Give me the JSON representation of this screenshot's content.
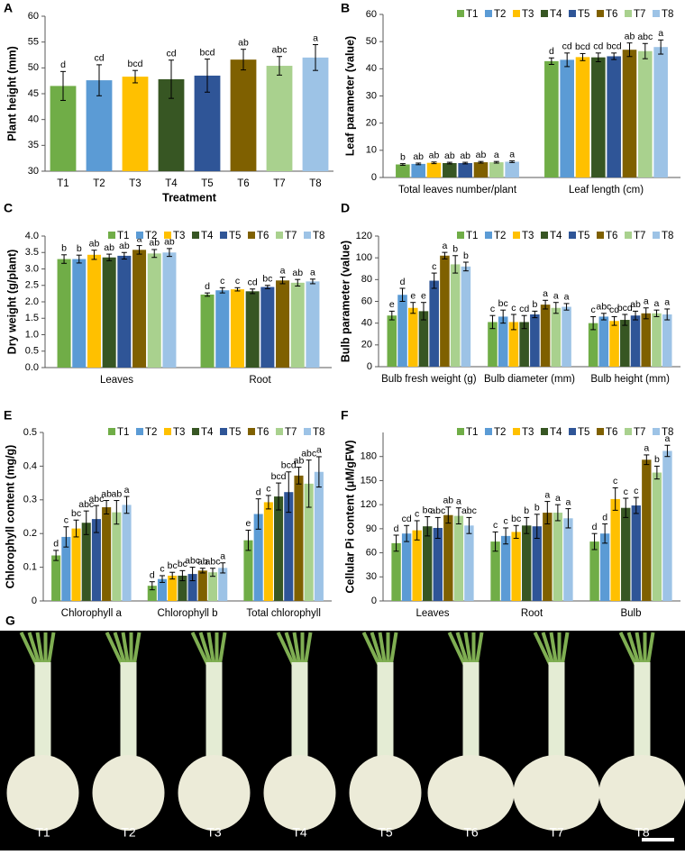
{
  "chart_data": [
    {
      "type": "bar",
      "panel": "A",
      "ylabel": "Plant height (mm)",
      "xlabel": "Treatment",
      "categories": [
        "T1",
        "T2",
        "T3",
        "T4",
        "T5",
        "T6",
        "T7",
        "T8"
      ],
      "values": [
        46.5,
        47.6,
        48.3,
        47.8,
        48.5,
        51.6,
        50.4,
        52.0
      ],
      "errors": [
        2.8,
        3.0,
        1.2,
        3.7,
        3.2,
        2.0,
        1.8,
        2.5
      ],
      "letters": [
        "d",
        "cd",
        "bcd",
        "cd",
        "bcd",
        "ab",
        "abc",
        "a"
      ],
      "colors": [
        "#70ad47",
        "#5b9bd5",
        "#ffc000",
        "#375623",
        "#2f5597",
        "#7f6000",
        "#a9d18e",
        "#9dc3e6"
      ],
      "ylim": [
        30,
        60
      ],
      "yticks": [
        30,
        35,
        40,
        45,
        50,
        55,
        60
      ]
    },
    {
      "type": "bar",
      "panel": "B",
      "ylabel": "Leaf parameter (value)",
      "legend": "top",
      "categories": [
        "Total leaves number/plant",
        "Leaf length (cm)"
      ],
      "series": [
        {
          "name": "T1",
          "color": "#70ad47",
          "values": [
            4.8,
            42.8
          ],
          "errors": [
            0.3,
            1.2
          ],
          "letters": [
            "b",
            "d"
          ]
        },
        {
          "name": "T2",
          "color": "#5b9bd5",
          "values": [
            5.0,
            43.3
          ],
          "errors": [
            0.3,
            2.5
          ],
          "letters": [
            "ab",
            "cd"
          ]
        },
        {
          "name": "T3",
          "color": "#ffc000",
          "values": [
            5.4,
            44.3
          ],
          "errors": [
            0.3,
            1.3
          ],
          "letters": [
            "ab",
            "bcd"
          ]
        },
        {
          "name": "T4",
          "color": "#375623",
          "values": [
            5.3,
            44.2
          ],
          "errors": [
            0.3,
            1.6
          ],
          "letters": [
            "ab",
            "cd"
          ]
        },
        {
          "name": "T5",
          "color": "#2f5597",
          "values": [
            5.3,
            44.6
          ],
          "errors": [
            0.3,
            1.2
          ],
          "letters": [
            "ab",
            "bcd"
          ]
        },
        {
          "name": "T6",
          "color": "#7f6000",
          "values": [
            5.6,
            47.0
          ],
          "errors": [
            0.3,
            2.5
          ],
          "letters": [
            "ab",
            "ab"
          ]
        },
        {
          "name": "T7",
          "color": "#a9d18e",
          "values": [
            5.6,
            46.5
          ],
          "errors": [
            0.3,
            2.8
          ],
          "letters": [
            "a",
            "abc"
          ]
        },
        {
          "name": "T8",
          "color": "#9dc3e6",
          "values": [
            5.8,
            48.0
          ],
          "errors": [
            0.3,
            2.6
          ],
          "letters": [
            "a",
            "a"
          ]
        }
      ],
      "ylim": [
        0,
        60
      ],
      "yticks": [
        0,
        10,
        20,
        30,
        40,
        50,
        60
      ]
    },
    {
      "type": "bar",
      "panel": "C",
      "ylabel": "Dry weight (g/plant)",
      "legend": "top",
      "categories": [
        "Leaves",
        "Root"
      ],
      "series": [
        {
          "name": "T1",
          "color": "#70ad47",
          "values": [
            3.3,
            2.22
          ],
          "errors": [
            0.13,
            0.05
          ],
          "letters": [
            "b",
            "d"
          ]
        },
        {
          "name": "T2",
          "color": "#5b9bd5",
          "values": [
            3.3,
            2.35
          ],
          "errors": [
            0.12,
            0.08
          ],
          "letters": [
            "b",
            "c"
          ]
        },
        {
          "name": "T3",
          "color": "#ffc000",
          "values": [
            3.43,
            2.38
          ],
          "errors": [
            0.14,
            0.05
          ],
          "letters": [
            "ab",
            "c"
          ]
        },
        {
          "name": "T4",
          "color": "#375623",
          "values": [
            3.35,
            2.32
          ],
          "errors": [
            0.1,
            0.07
          ],
          "letters": [
            "ab",
            "cd"
          ]
        },
        {
          "name": "T5",
          "color": "#2f5597",
          "values": [
            3.4,
            2.45
          ],
          "errors": [
            0.1,
            0.05
          ],
          "letters": [
            "ab",
            "bc"
          ]
        },
        {
          "name": "T6",
          "color": "#7f6000",
          "values": [
            3.58,
            2.65
          ],
          "errors": [
            0.13,
            0.1
          ],
          "letters": [
            "a",
            "a"
          ]
        },
        {
          "name": "T7",
          "color": "#a9d18e",
          "values": [
            3.47,
            2.58
          ],
          "errors": [
            0.12,
            0.1
          ],
          "letters": [
            "ab",
            "ab"
          ]
        },
        {
          "name": "T8",
          "color": "#9dc3e6",
          "values": [
            3.5,
            2.62
          ],
          "errors": [
            0.12,
            0.07
          ],
          "letters": [
            "ab",
            "a"
          ]
        }
      ],
      "ylim": [
        0,
        4
      ],
      "yticks": [
        {
          "value": 0,
          "label": "0.0"
        },
        0.5,
        {
          "value": 1,
          "label": "1.0"
        },
        1.5,
        {
          "value": 2,
          "label": "2.0"
        },
        2.5,
        {
          "value": 3,
          "label": "3.0"
        },
        3.5,
        {
          "value": 4,
          "label": "4.0"
        }
      ]
    },
    {
      "type": "bar",
      "panel": "D",
      "ylabel": "Bulb parameter (value)",
      "legend": "top",
      "categories": [
        "Bulb fresh weight (g)",
        "Bulb diameter (mm)",
        "Bulb height (mm)"
      ],
      "series": [
        {
          "name": "T1",
          "color": "#70ad47",
          "values": [
            47,
            41,
            40
          ],
          "errors": [
            4,
            6,
            6
          ],
          "letters": [
            "e",
            "c",
            "c"
          ]
        },
        {
          "name": "T2",
          "color": "#5b9bd5",
          "values": [
            66,
            46,
            46
          ],
          "errors": [
            6,
            6,
            3
          ],
          "letters": [
            "d",
            "bc",
            "abc"
          ]
        },
        {
          "name": "T3",
          "color": "#ffc000",
          "values": [
            54,
            41,
            42
          ],
          "errors": [
            5,
            7,
            4
          ],
          "letters": [
            "e",
            "c",
            "cd"
          ]
        },
        {
          "name": "T4",
          "color": "#375623",
          "values": [
            51,
            41,
            43
          ],
          "errors": [
            8,
            6,
            5
          ],
          "letters": [
            "e",
            "cd",
            "bcd"
          ]
        },
        {
          "name": "T5",
          "color": "#2f5597",
          "values": [
            79,
            48,
            47
          ],
          "errors": [
            7,
            3,
            4
          ],
          "letters": [
            "c",
            "b",
            "ab"
          ]
        },
        {
          "name": "T6",
          "color": "#7f6000",
          "values": [
            102,
            57,
            49
          ],
          "errors": [
            3,
            4,
            5
          ],
          "letters": [
            "a",
            "a",
            "a"
          ]
        },
        {
          "name": "T7",
          "color": "#a9d18e",
          "values": [
            94,
            54,
            49
          ],
          "errors": [
            8,
            5,
            3
          ],
          "letters": [
            "b",
            "a",
            "a"
          ]
        },
        {
          "name": "T8",
          "color": "#9dc3e6",
          "values": [
            92,
            55,
            48
          ],
          "errors": [
            4,
            3,
            5
          ],
          "letters": [
            "b",
            "a",
            "a"
          ]
        }
      ],
      "ylim": [
        0,
        120
      ],
      "yticks": [
        0,
        20,
        40,
        60,
        80,
        100,
        120
      ]
    },
    {
      "type": "bar",
      "panel": "E",
      "ylabel": "Chlorophyll content (mg/g)",
      "legend": "top",
      "categories": [
        "Chlorophyll a",
        "Chlorophyll b",
        "Total chlorophyll"
      ],
      "series": [
        {
          "name": "T1",
          "color": "#70ad47",
          "values": [
            0.135,
            0.045,
            0.18
          ],
          "errors": [
            0.015,
            0.012,
            0.03
          ],
          "letters": [
            "d",
            "d",
            "e"
          ]
        },
        {
          "name": "T2",
          "color": "#5b9bd5",
          "values": [
            0.19,
            0.065,
            0.258
          ],
          "errors": [
            0.03,
            0.01,
            0.045
          ],
          "letters": [
            "c",
            "c",
            "d"
          ]
        },
        {
          "name": "T3",
          "color": "#ffc000",
          "values": [
            0.215,
            0.075,
            0.293
          ],
          "errors": [
            0.025,
            0.01,
            0.02
          ],
          "letters": [
            "bc",
            "bc",
            "c"
          ]
        },
        {
          "name": "T4",
          "color": "#375623",
          "values": [
            0.232,
            0.075,
            0.31
          ],
          "errors": [
            0.035,
            0.015,
            0.04
          ],
          "letters": [
            "abc",
            "bc",
            "bcd"
          ]
        },
        {
          "name": "T5",
          "color": "#2f5597",
          "values": [
            0.243,
            0.08,
            0.323
          ],
          "errors": [
            0.04,
            0.02,
            0.06
          ],
          "letters": [
            "abc",
            "abc",
            "bcd"
          ]
        },
        {
          "name": "T6",
          "color": "#7f6000",
          "values": [
            0.278,
            0.09,
            0.372
          ],
          "errors": [
            0.02,
            0.007,
            0.025
          ],
          "letters": [
            "ab",
            "ab",
            "ab"
          ]
        },
        {
          "name": "T7",
          "color": "#a9d18e",
          "values": [
            0.263,
            0.085,
            0.348
          ],
          "errors": [
            0.035,
            0.012,
            0.07
          ],
          "letters": [
            "ab",
            "abc",
            "abc"
          ]
        },
        {
          "name": "T8",
          "color": "#9dc3e6",
          "values": [
            0.285,
            0.098,
            0.383
          ],
          "errors": [
            0.025,
            0.015,
            0.045
          ],
          "letters": [
            "a",
            "a",
            "a"
          ]
        }
      ],
      "ylim": [
        0,
        0.5
      ],
      "yticks": [
        0,
        0.1,
        0.2,
        0.3,
        0.4,
        0.5
      ]
    },
    {
      "type": "bar",
      "panel": "F",
      "ylabel": "Cellular Pi content (μM/gFW)",
      "legend": "top",
      "categories": [
        "Leaves",
        "Root",
        "Bulb"
      ],
      "series": [
        {
          "name": "T1",
          "color": "#70ad47",
          "values": [
            72,
            74,
            74
          ],
          "errors": [
            10,
            12,
            10
          ],
          "letters": [
            "d",
            "c",
            "d"
          ]
        },
        {
          "name": "T2",
          "color": "#5b9bd5",
          "values": [
            84,
            81,
            84
          ],
          "errors": [
            10,
            10,
            12
          ],
          "letters": [
            "cd",
            "c",
            "d"
          ]
        },
        {
          "name": "T3",
          "color": "#ffc000",
          "values": [
            88,
            86,
            127
          ],
          "errors": [
            12,
            8,
            14
          ],
          "letters": [
            "c",
            "bc",
            "c"
          ]
        },
        {
          "name": "T4",
          "color": "#375623",
          "values": [
            93,
            94,
            116
          ],
          "errors": [
            12,
            10,
            12
          ],
          "letters": [
            "bc",
            "b",
            "c"
          ]
        },
        {
          "name": "T5",
          "color": "#2f5597",
          "values": [
            91,
            93,
            119
          ],
          "errors": [
            13,
            15,
            10
          ],
          "letters": [
            "abc",
            "b",
            "c"
          ]
        },
        {
          "name": "T6",
          "color": "#7f6000",
          "values": [
            107,
            110,
            176
          ],
          "errors": [
            10,
            14,
            6
          ],
          "letters": [
            "ab",
            "a",
            "a"
          ]
        },
        {
          "name": "T7",
          "color": "#a9d18e",
          "values": [
            106,
            110,
            160
          ],
          "errors": [
            10,
            10,
            8
          ],
          "letters": [
            "a",
            "a",
            "b"
          ]
        },
        {
          "name": "T8",
          "color": "#9dc3e6",
          "values": [
            94,
            103,
            187
          ],
          "errors": [
            10,
            12,
            7
          ],
          "letters": [
            "abc",
            "a",
            "a"
          ]
        }
      ],
      "ylim": [
        0,
        210
      ],
      "yticks": [
        0,
        30,
        60,
        90,
        120,
        150,
        180
      ]
    }
  ],
  "photo": {
    "panel": "G",
    "labels": [
      "T1",
      "T2",
      "T3",
      "T4",
      "T5",
      "T6",
      "T7",
      "T8"
    ]
  }
}
